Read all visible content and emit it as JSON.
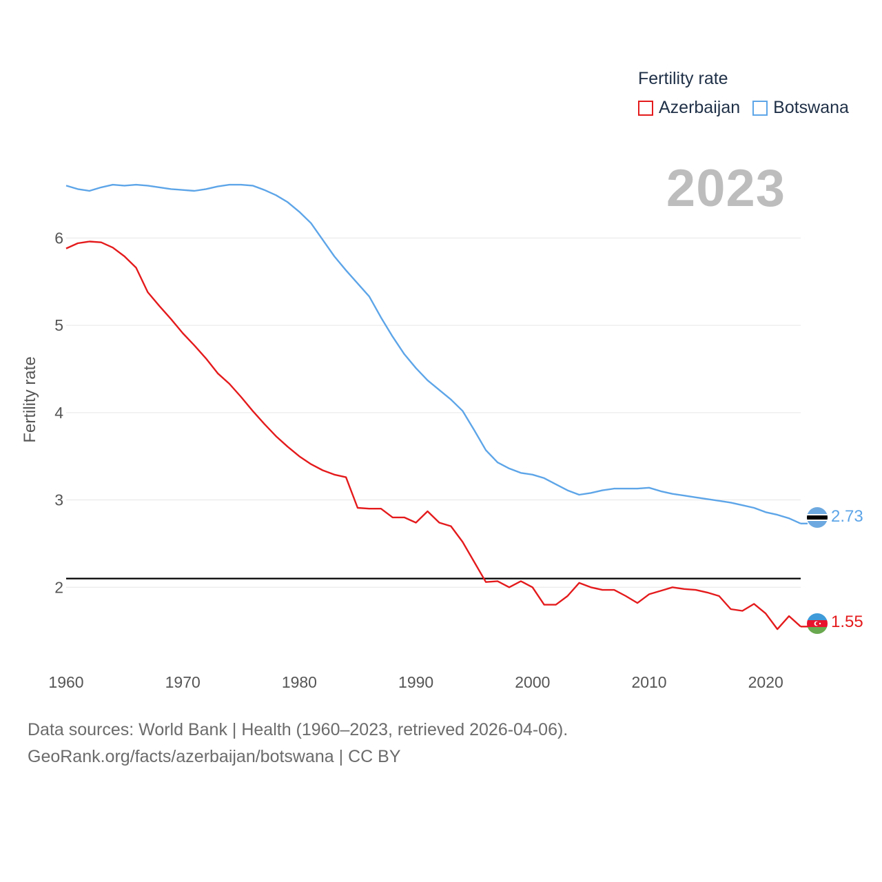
{
  "legend": {
    "title": "Fertility rate",
    "items": [
      {
        "name": "Azerbaijan",
        "color": "#e41a1c"
      },
      {
        "name": "Botswana",
        "color": "#5da5e8"
      }
    ]
  },
  "year_label": "2023",
  "footer": {
    "line1": "Data sources: World Bank | Health (1960–2023, retrieved 2026-04-06).",
    "line2": "GeoRank.org/facts/azerbaijan/botswana | CC BY"
  },
  "end_labels": {
    "botswana": "2.73",
    "azerbaijan": "1.55"
  },
  "chart_data": {
    "type": "line",
    "title": "",
    "xlabel": "",
    "ylabel": "Fertility rate",
    "xlim": [
      1960,
      2023
    ],
    "ylim": [
      1.15,
      6.95
    ],
    "x_ticks": [
      1960,
      1970,
      1980,
      1990,
      2000,
      2010,
      2020
    ],
    "y_ticks": [
      2,
      3,
      4,
      5,
      6
    ],
    "grid": true,
    "reference_line": {
      "y": 2.1,
      "color": "#000000"
    },
    "legend_position": "top-right",
    "x": [
      1960,
      1961,
      1962,
      1963,
      1964,
      1965,
      1966,
      1967,
      1968,
      1969,
      1970,
      1971,
      1972,
      1973,
      1974,
      1975,
      1976,
      1977,
      1978,
      1979,
      1980,
      1981,
      1982,
      1983,
      1984,
      1985,
      1986,
      1987,
      1988,
      1989,
      1990,
      1991,
      1992,
      1993,
      1994,
      1995,
      1996,
      1997,
      1998,
      1999,
      2000,
      2001,
      2002,
      2003,
      2004,
      2005,
      2006,
      2007,
      2008,
      2009,
      2010,
      2011,
      2012,
      2013,
      2014,
      2015,
      2016,
      2017,
      2018,
      2019,
      2020,
      2021,
      2022,
      2023
    ],
    "series": [
      {
        "name": "Azerbaijan",
        "color": "#e41a1c",
        "values": [
          5.88,
          5.94,
          5.96,
          5.95,
          5.89,
          5.79,
          5.66,
          5.38,
          5.22,
          5.07,
          4.91,
          4.77,
          4.62,
          4.45,
          4.33,
          4.18,
          4.02,
          3.87,
          3.73,
          3.61,
          3.5,
          3.41,
          3.34,
          3.29,
          3.26,
          2.91,
          2.9,
          2.9,
          2.8,
          2.8,
          2.74,
          2.87,
          2.74,
          2.7,
          2.52,
          2.29,
          2.06,
          2.07,
          2.0,
          2.07,
          2.0,
          1.8,
          1.8,
          1.9,
          2.05,
          2.0,
          1.97,
          1.97,
          1.9,
          1.82,
          1.92,
          1.96,
          2.0,
          1.98,
          1.97,
          1.94,
          1.9,
          1.75,
          1.73,
          1.81,
          1.7,
          1.52,
          1.67,
          1.55
        ]
      },
      {
        "name": "Botswana",
        "color": "#5da5e8",
        "values": [
          6.6,
          6.56,
          6.54,
          6.58,
          6.61,
          6.6,
          6.61,
          6.6,
          6.58,
          6.56,
          6.55,
          6.54,
          6.56,
          6.59,
          6.61,
          6.61,
          6.6,
          6.55,
          6.49,
          6.41,
          6.3,
          6.17,
          5.98,
          5.79,
          5.63,
          5.48,
          5.33,
          5.09,
          4.87,
          4.67,
          4.51,
          4.37,
          4.26,
          4.15,
          4.02,
          3.8,
          3.57,
          3.43,
          3.36,
          3.31,
          3.29,
          3.25,
          3.18,
          3.11,
          3.06,
          3.08,
          3.11,
          3.13,
          3.13,
          3.13,
          3.14,
          3.1,
          3.07,
          3.05,
          3.03,
          3.01,
          2.99,
          2.97,
          2.94,
          2.91,
          2.86,
          2.83,
          2.79,
          2.73
        ]
      }
    ]
  }
}
